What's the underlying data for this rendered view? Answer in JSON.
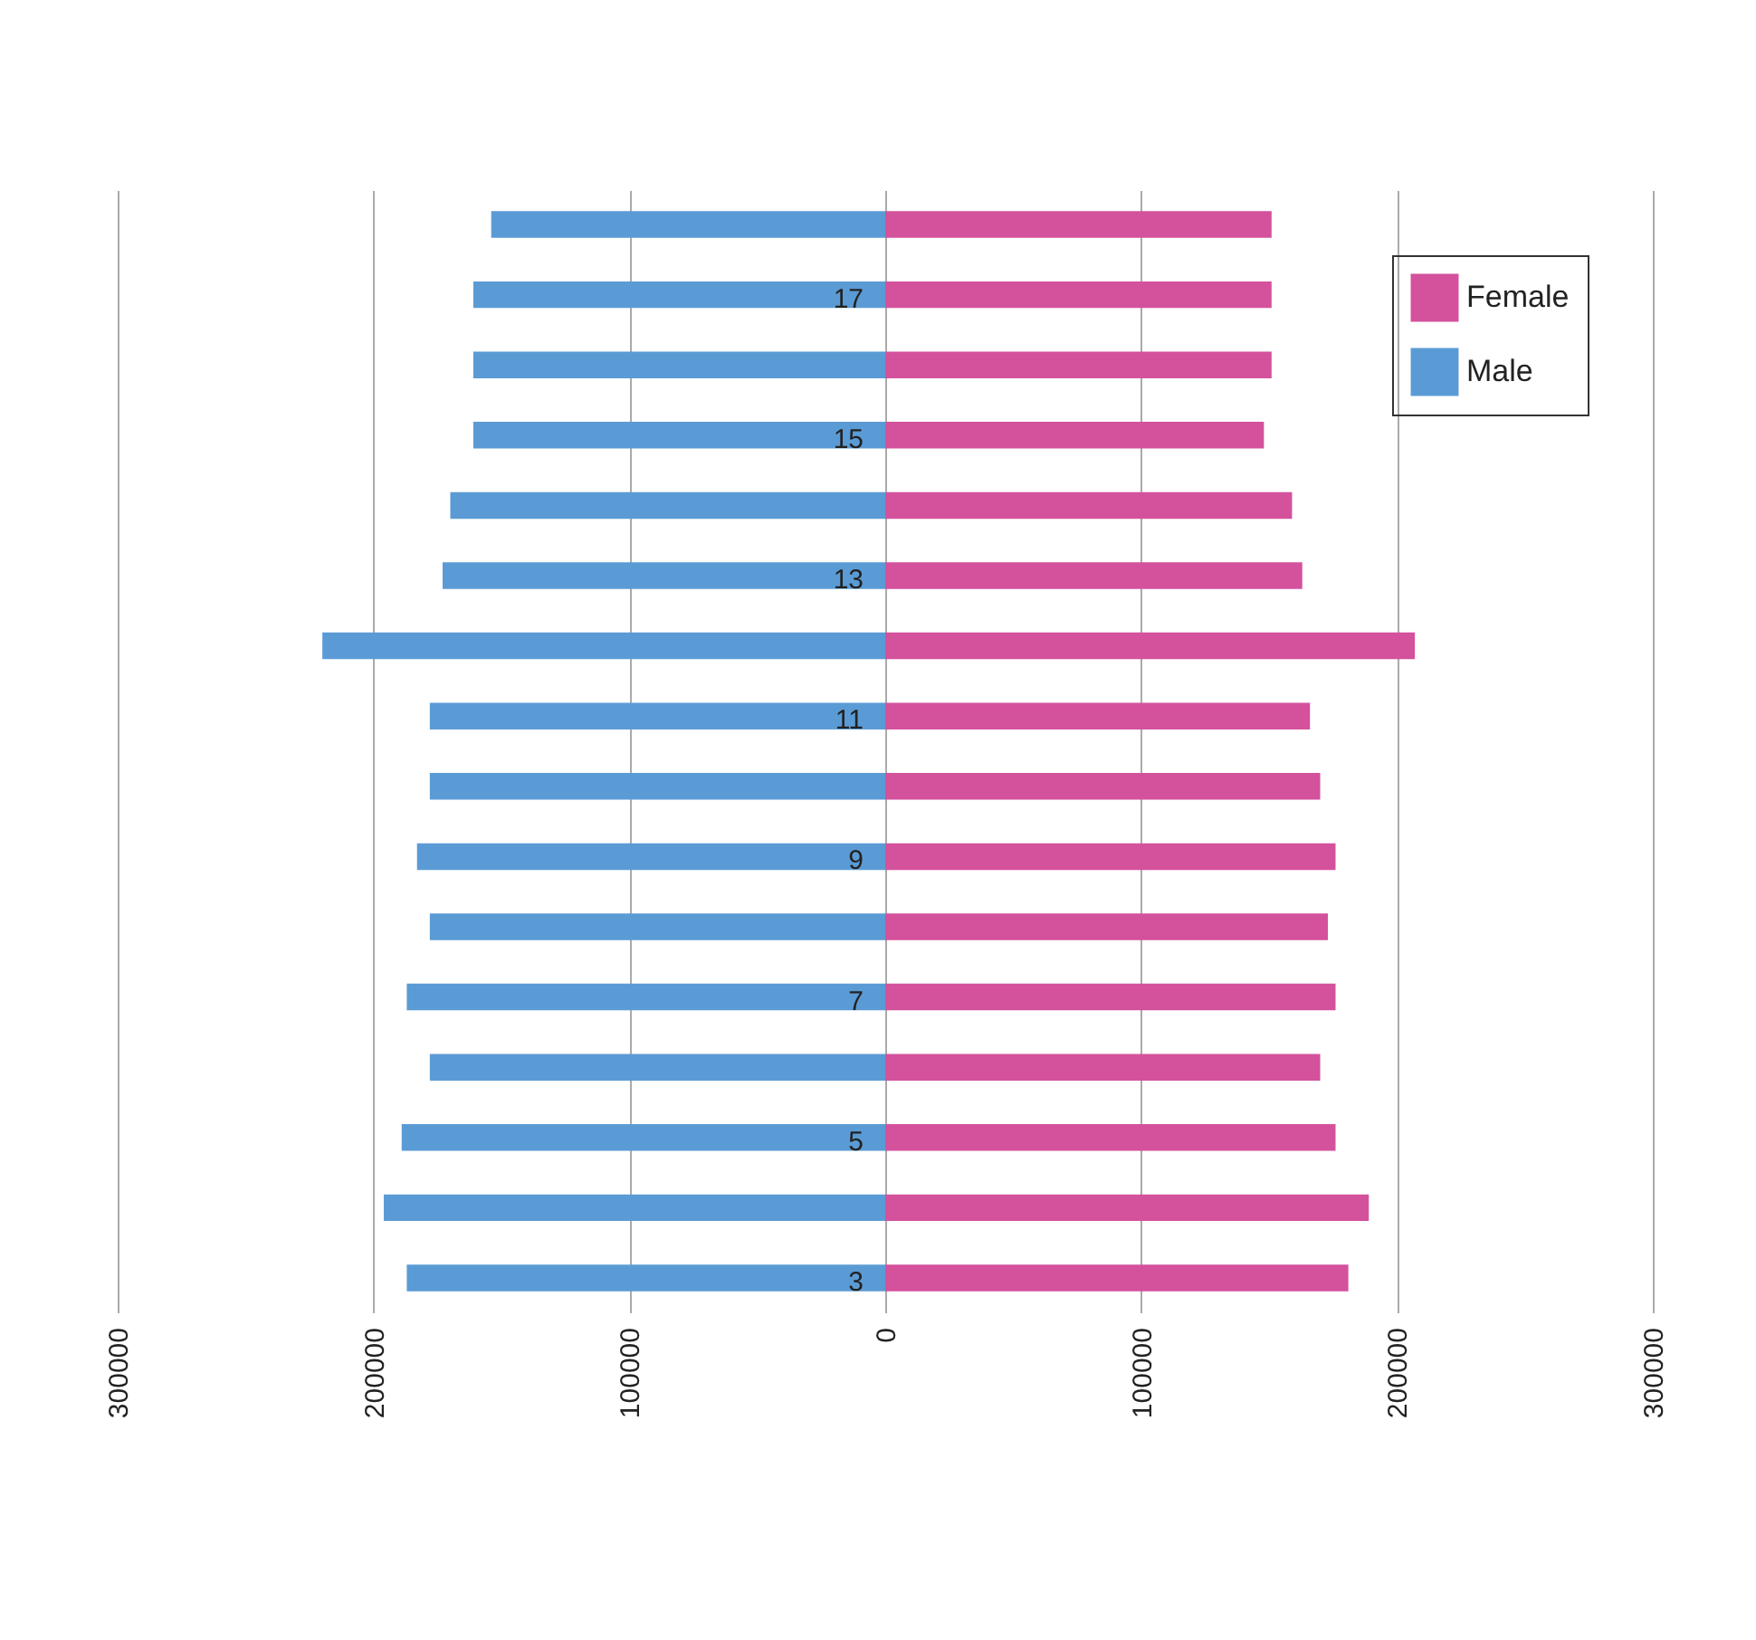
{
  "chart_data": {
    "type": "bar",
    "orientation": "horizontal",
    "categories": [
      null,
      "17",
      null,
      "15",
      null,
      "13",
      null,
      "11",
      null,
      "9",
      null,
      "7",
      null,
      "5",
      null,
      "3"
    ],
    "series": [
      {
        "name": "Female",
        "color": "#d4519c",
        "values": [
          151000,
          151000,
          151000,
          148000,
          159000,
          163000,
          207000,
          166000,
          170000,
          176000,
          173000,
          176000,
          170000,
          176000,
          189000,
          181000
        ]
      },
      {
        "name": "Male",
        "color": "#5b9bd5",
        "values": [
          -154000,
          -161000,
          -161000,
          -161000,
          -170000,
          -173000,
          -220000,
          -178000,
          -178000,
          -183000,
          -178000,
          -187000,
          -178000,
          -189000,
          -196000,
          -187000
        ]
      }
    ],
    "xlim": [
      -300000,
      300000
    ],
    "xticks": [
      {
        "value": -300000,
        "label": "300000"
      },
      {
        "value": -200000,
        "label": "200000"
      },
      {
        "value": -100000,
        "label": "100000"
      },
      0,
      100000,
      200000,
      300000
    ],
    "grid": "x",
    "legend": "top right",
    "stacked": true
  }
}
